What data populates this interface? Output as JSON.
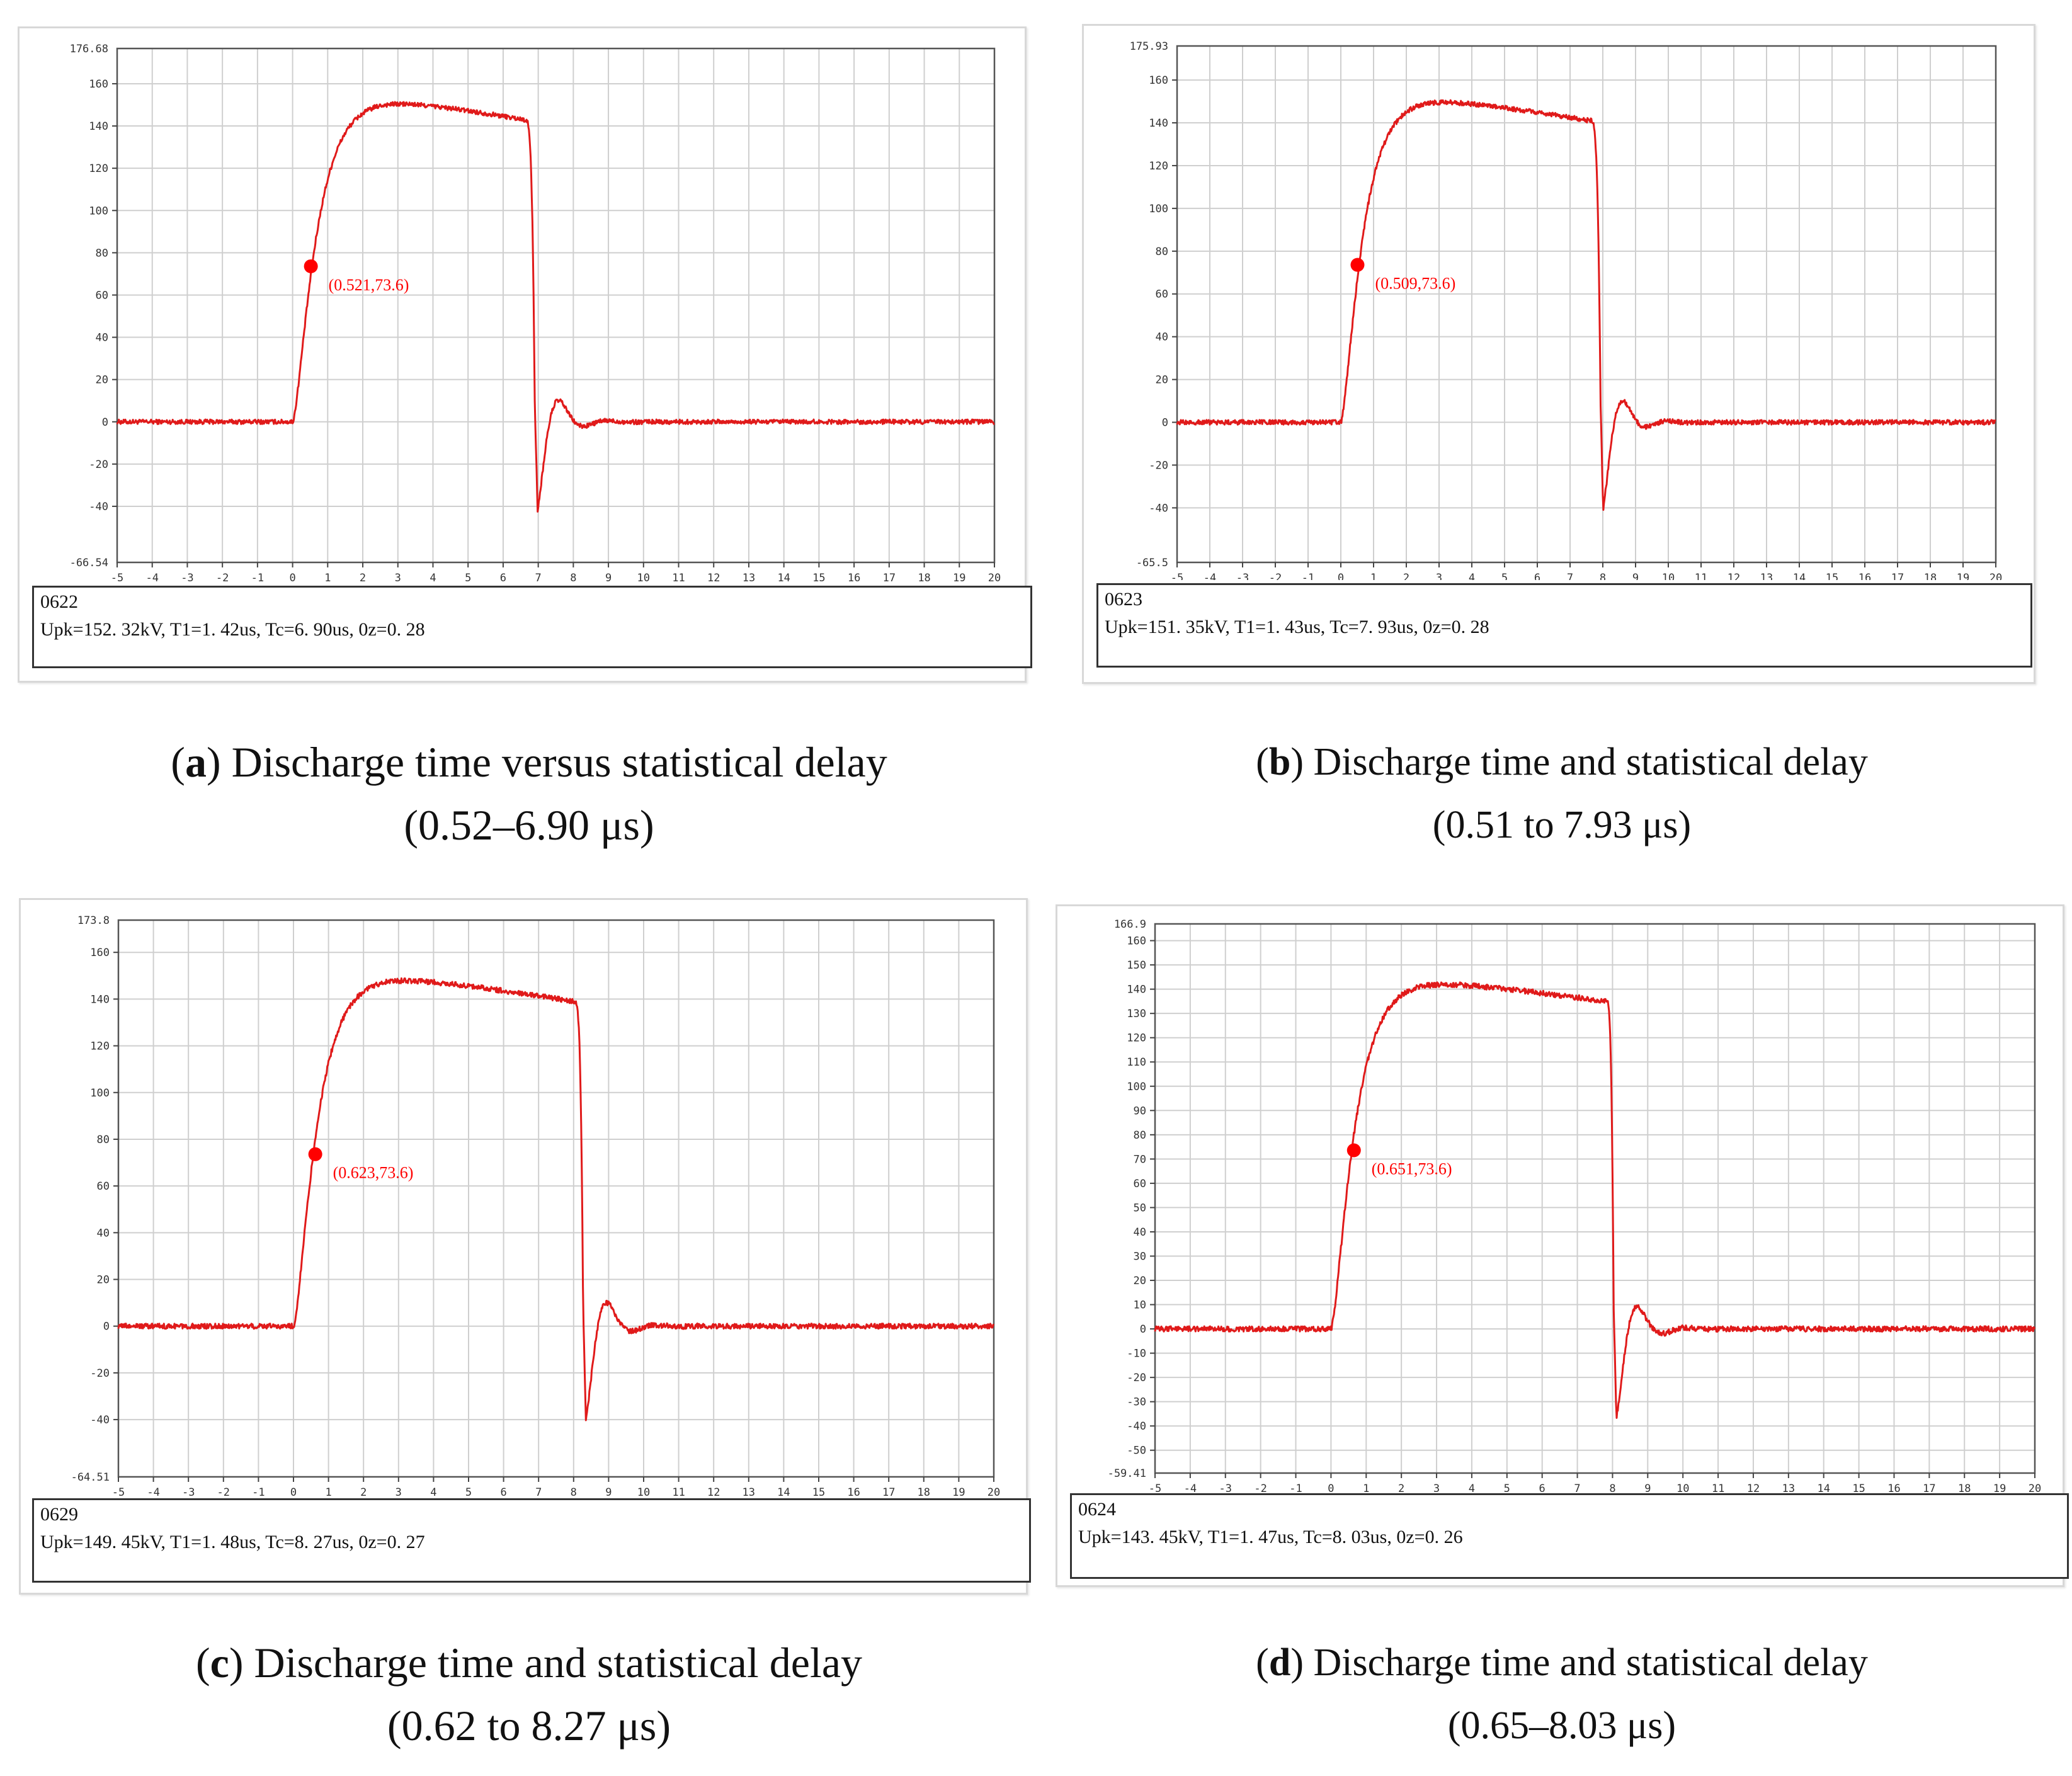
{
  "colors": {
    "trace": "#e01a1a",
    "marker": "#ff0000",
    "grid": "#cfcfcf",
    "frame": "#333333"
  },
  "chart_data": [
    {
      "type": "line",
      "panel_label": "a",
      "caption": "Discharge time versus statistical delay",
      "caption_range": "(0.52–6.90 μs)",
      "record_id": "0622",
      "params": "Upk=152. 32kV, T1=1. 42us, Tc=6. 90us, 0z=0. 28",
      "xlim": [
        -5,
        20
      ],
      "ylim": [
        -66.54,
        176.68
      ],
      "ylim_labels": [
        "-66.54",
        "176.68"
      ],
      "xticks": [
        -5,
        -4,
        -3,
        -2,
        -1,
        0,
        1,
        2,
        3,
        4,
        5,
        6,
        7,
        8,
        9,
        10,
        11,
        12,
        13,
        14,
        15,
        16,
        17,
        18,
        19,
        20
      ],
      "yticks": [
        -40,
        -20,
        0,
        20,
        40,
        60,
        80,
        100,
        120,
        140,
        160
      ],
      "marker": {
        "x": 0.521,
        "y": 73.6,
        "label": "(0.521,73.6)"
      },
      "waveform": {
        "t_start": 0.0,
        "peak_time": 2.3,
        "peak": 152.3,
        "fall_start": 6.6,
        "fall_level": 143,
        "chop_time": 6.9,
        "undershoot": -42,
        "osc_peak": 15
      }
    },
    {
      "type": "line",
      "panel_label": "b",
      "caption": "Discharge time and statistical delay",
      "caption_range": "(0.51 to 7.93 μs)",
      "record_id": "0623",
      "params": "Upk=151. 35kV, T1=1. 43us, Tc=7. 93us, 0z=0. 28",
      "xlim": [
        -5,
        20
      ],
      "ylim": [
        -65.5,
        175.93
      ],
      "ylim_labels": [
        "-65.5",
        "175.93"
      ],
      "xticks": [
        -5,
        -4,
        -3,
        -2,
        -1,
        0,
        1,
        2,
        3,
        4,
        5,
        6,
        7,
        8,
        9,
        10,
        11,
        12,
        13,
        14,
        15,
        16,
        17,
        18,
        19,
        20
      ],
      "yticks": [
        -40,
        -20,
        0,
        20,
        40,
        60,
        80,
        100,
        120,
        140,
        160
      ],
      "marker": {
        "x": 0.509,
        "y": 73.6,
        "label": "(0.509,73.6)"
      },
      "waveform": {
        "t_start": 0.0,
        "peak_time": 2.3,
        "peak": 151.3,
        "fall_start": 7.6,
        "fall_level": 141,
        "chop_time": 7.93,
        "undershoot": -41,
        "osc_peak": 17
      }
    },
    {
      "type": "line",
      "panel_label": "c",
      "caption": "Discharge time and statistical delay",
      "caption_range": "(0.62 to 8.27 μs)",
      "record_id": "0629",
      "params": "Upk=149. 45kV, T1=1. 48us, Tc=8. 27us, 0z=0. 27",
      "xlim": [
        -5,
        20
      ],
      "ylim": [
        -64.51,
        173.8
      ],
      "ylim_labels": [
        "-64.51",
        "173.8"
      ],
      "xticks": [
        -5,
        -4,
        -3,
        -2,
        -1,
        0,
        1,
        2,
        3,
        4,
        5,
        6,
        7,
        8,
        9,
        10,
        11,
        12,
        13,
        14,
        15,
        16,
        17,
        18,
        19,
        20
      ],
      "yticks": [
        -40,
        -20,
        0,
        20,
        40,
        60,
        80,
        100,
        120,
        140,
        160
      ],
      "marker": {
        "x": 0.623,
        "y": 73.6,
        "label": "(0.623,73.6)"
      },
      "waveform": {
        "t_start": 0.0,
        "peak_time": 2.4,
        "peak": 149.4,
        "fall_start": 8.0,
        "fall_level": 139,
        "chop_time": 8.27,
        "undershoot": -41,
        "osc_peak": 17
      }
    },
    {
      "type": "line",
      "panel_label": "d",
      "caption": "Discharge time and statistical delay",
      "caption_range": "(0.65–8.03 μs)",
      "record_id": "0624",
      "params": "Upk=143. 45kV, T1=1. 47us, Tc=8. 03us, 0z=0. 26",
      "xlim": [
        -5,
        20
      ],
      "ylim": [
        -59.41,
        166.9
      ],
      "ylim_labels": [
        "-59.41",
        "166.9"
      ],
      "xticks": [
        -5,
        -4,
        -3,
        -2,
        -1,
        0,
        1,
        2,
        3,
        4,
        5,
        6,
        7,
        8,
        9,
        10,
        11,
        12,
        13,
        14,
        15,
        16,
        17,
        18,
        19,
        20
      ],
      "yticks": [
        -50,
        -40,
        -30,
        -20,
        -10,
        0,
        10,
        20,
        30,
        40,
        50,
        60,
        70,
        80,
        90,
        100,
        110,
        120,
        130,
        140,
        150,
        160
      ],
      "marker": {
        "x": 0.651,
        "y": 73.6,
        "label": "(0.651,73.6)"
      },
      "waveform": {
        "t_start": 0.0,
        "peak_time": 2.3,
        "peak": 143.4,
        "fall_start": 7.8,
        "fall_level": 135,
        "chop_time": 8.03,
        "undershoot": -37,
        "osc_peak": 17
      }
    }
  ]
}
